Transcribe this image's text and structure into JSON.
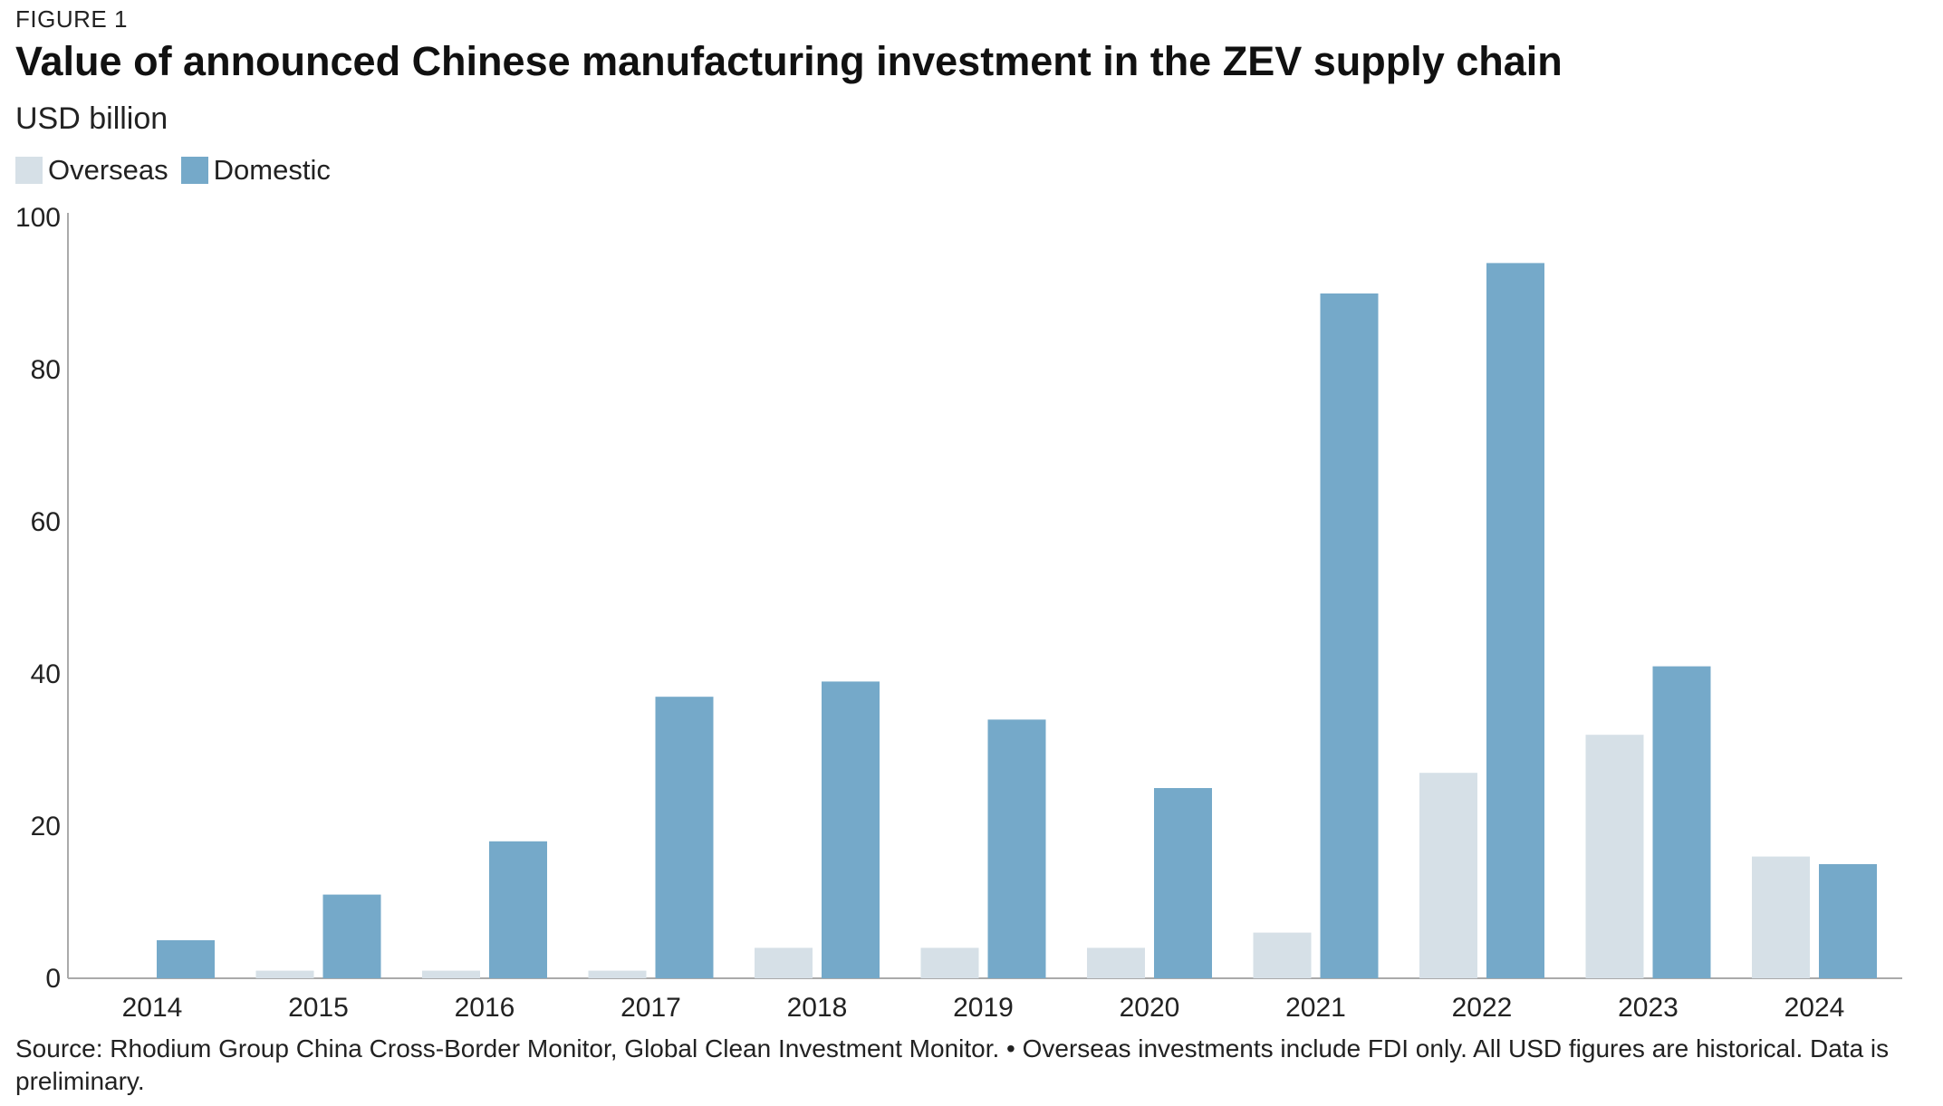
{
  "figure_label": "FIGURE 1",
  "chart_data": {
    "type": "bar",
    "title": "Value of announced Chinese manufacturing investment in the ZEV supply chain",
    "ylabel": "USD billion",
    "xlabel": "",
    "categories": [
      "2014",
      "2015",
      "2016",
      "2017",
      "2018",
      "2019",
      "2020",
      "2021",
      "2022",
      "2023",
      "2024"
    ],
    "series": [
      {
        "name": "Overseas",
        "color": "#d6e0e7",
        "values": [
          0,
          1,
          1,
          1,
          4,
          4,
          4,
          6,
          27,
          32,
          16
        ]
      },
      {
        "name": "Domestic",
        "color": "#75a9c9",
        "values": [
          5,
          11,
          18,
          37,
          39,
          34,
          25,
          90,
          94,
          41,
          15
        ]
      }
    ],
    "ylim": [
      0,
      100
    ],
    "yticks": [
      0,
      20,
      40,
      60,
      80,
      100
    ],
    "legend_position": "top-left",
    "grid": false
  },
  "source": "Source: Rhodium Group China Cross-Border Monitor, Global Clean Investment Monitor. • Overseas investments include FDI only. All USD figures are historical. Data is preliminary."
}
